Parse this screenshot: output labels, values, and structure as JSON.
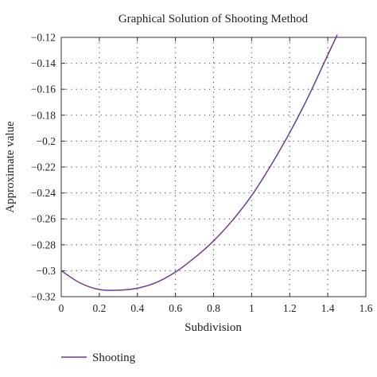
{
  "chart_data": {
    "type": "line",
    "title": "Graphical Solution of Shooting Method",
    "xlabel": "Subdivision",
    "ylabel": "Approximate value",
    "xlim": [
      0,
      1.6
    ],
    "ylim": [
      -0.32,
      -0.12
    ],
    "xticks": [
      0,
      0.2,
      0.4,
      0.6,
      0.8,
      1,
      1.2,
      1.4,
      1.6
    ],
    "xtick_labels": [
      "0",
      "0.2",
      "0.4",
      "0.6",
      "0.8",
      "1",
      "1.2",
      "1.4",
      "1.6"
    ],
    "yticks": [
      -0.32,
      -0.3,
      -0.28,
      -0.26,
      -0.24,
      -0.22,
      -0.2,
      -0.18,
      -0.16,
      -0.14,
      -0.12
    ],
    "ytick_labels": [
      "−0.32",
      "−0.3",
      "−0.28",
      "−0.26",
      "−0.24",
      "−0.22",
      "−0.2",
      "−0.18",
      "−0.16",
      "−0.14",
      "−0.12"
    ],
    "grid": true,
    "legend_position": "bottom-left",
    "series": [
      {
        "name": "Shooting",
        "color": "#6a3d8c",
        "x": [
          0,
          0.1,
          0.2,
          0.3,
          0.4,
          0.5,
          0.6,
          0.7,
          0.8,
          0.9,
          1.0,
          1.1,
          1.2,
          1.3,
          1.4,
          1.45
        ],
        "y": [
          -0.3,
          -0.3095,
          -0.3145,
          -0.315,
          -0.3135,
          -0.309,
          -0.301,
          -0.29,
          -0.277,
          -0.261,
          -0.242,
          -0.219,
          -0.1935,
          -0.165,
          -0.1335,
          -0.118
        ]
      }
    ]
  }
}
